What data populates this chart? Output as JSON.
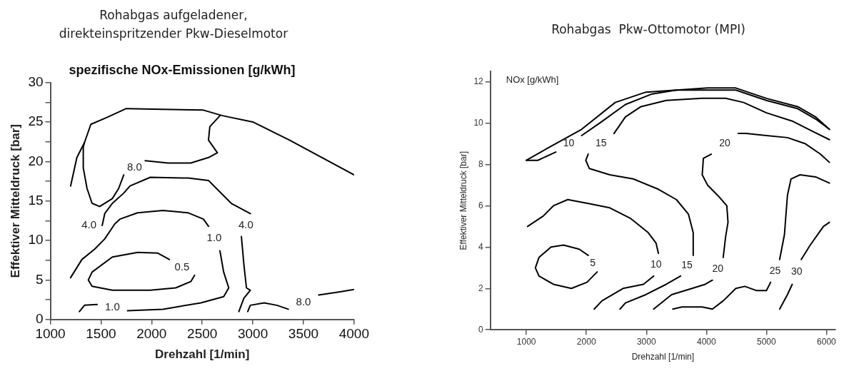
{
  "chart_data": [
    {
      "type": "line",
      "title": "Rohabgas aufgeladener, direkteinspritzender Pkw-Dieselmotor",
      "subtitle": "spezifische NOx-Emissionen [g/kWh]",
      "xlabel": "Drehzahl [1/min]",
      "ylabel": "Effektiver Mitteldruck [bar]",
      "xlim": [
        1000,
        4000
      ],
      "ylim": [
        0,
        30
      ],
      "xticks": [
        1000,
        1500,
        2000,
        2500,
        3000,
        3500,
        4000
      ],
      "yticks": [
        0,
        {
          "value": 2.5,
          "label": null
        },
        5,
        {
          "value": 7.5,
          "label": null
        },
        10,
        {
          "value": 12.5,
          "label": null
        },
        15,
        {
          "value": 17.5,
          "label": null
        },
        20,
        {
          "value": 22.5,
          "label": null
        },
        25,
        {
          "value": 27.5,
          "label": null
        },
        30
      ],
      "series": [
        {
          "type": "line",
          "color": "#000000",
          "x": [
            1200,
            1262,
            1337,
            1400,
            1562,
            1750,
            2112,
            2512,
            2700,
            3000,
            3362,
            4000
          ],
          "values": [
            16.9,
            20.5,
            22.4,
            24.7,
            25.6,
            26.7,
            26.6,
            26.5,
            25.8,
            25.0,
            22.7,
            18.3
          ]
        },
        {
          "type": "line",
          "name": "8.0",
          "color": "#000000",
          "x": [
            2675,
            2575,
            2562,
            2650,
            2562,
            2387,
            2162,
            1937,
            null,
            1725,
            1675,
            1612,
            1487,
            1412,
            1362,
            1325,
            1325,
            1337
          ],
          "values": [
            25.8,
            24.4,
            22.7,
            21.1,
            20.5,
            19.8,
            19.8,
            20.1,
            null,
            18.3,
            16.6,
            15.3,
            14.3,
            14.7,
            16.6,
            19.2,
            21.8,
            22.4
          ]
        },
        {
          "type": "line",
          "name": "4.0",
          "color": "#000000",
          "x": [
            null,
            1512,
            1537,
            1612,
            1725,
            1787,
            1987,
            2362,
            2562,
            2662,
            2787,
            2975,
            null,
            2887,
            2912,
            2937,
            2975,
            2912,
            2862
          ],
          "values": [
            null,
            11.9,
            13.4,
            14.7,
            16.0,
            16.9,
            18.0,
            17.9,
            17.6,
            16.3,
            14.7,
            13.4,
            null,
            10.5,
            6.9,
            4.0,
            3.7,
            2.7,
            1.0
          ]
        },
        {
          "type": "line",
          "name": "1.0",
          "color": "#000000",
          "x": [
            1200,
            1312,
            1437,
            1537,
            1637,
            1687,
            1862,
            2112,
            2362,
            2512,
            2562,
            null,
            2675,
            2712,
            2762,
            2712,
            2487,
            2112,
            1762,
            null,
            1462,
            1337,
            1287
          ],
          "values": [
            5.3,
            7.6,
            8.9,
            10.2,
            12.1,
            12.7,
            13.5,
            13.8,
            13.5,
            12.7,
            11.8,
            null,
            8.7,
            6.0,
            4.0,
            2.9,
            2.1,
            1.3,
            1.1,
            null,
            1.9,
            1.8,
            1.0
          ]
        },
        {
          "type": "line",
          "name": "0.5",
          "color": "#000000",
          "x": [
            1412,
            1612,
            1987,
            2237,
            2387,
            2425,
            null,
            2175,
            2062,
            1862,
            1612,
            1412,
            1375,
            1412
          ],
          "values": [
            4.2,
            3.7,
            3.7,
            4.0,
            4.8,
            5.6,
            null,
            7.6,
            8.4,
            8.5,
            7.9,
            6.0,
            5.0,
            4.2
          ]
        },
        {
          "type": "line",
          "name": "8.0",
          "color": "#000000",
          "x": [
            2950,
            2975,
            3112,
            3237,
            3350,
            null,
            3650,
            3862,
            4000
          ],
          "values": [
            1.0,
            1.8,
            2.1,
            1.8,
            1.3,
            null,
            3.1,
            3.5,
            3.8
          ]
        }
      ]
    },
    {
      "type": "line",
      "title": "Rohabgas  Pkw-Ottomotor (MPI)",
      "xlabel": "Drehzahl [1/min]",
      "ylabel": "Effektiver Mitteldruck [bar]",
      "xlim": [
        400,
        6150
      ],
      "ylim": [
        0,
        12.5
      ],
      "xticks": [
        1000,
        2000,
        3000,
        4000,
        5000,
        6000
      ],
      "yticks": [
        0,
        2,
        4,
        6,
        8,
        10,
        12
      ],
      "series": [
        {
          "type": "line",
          "color": "#000000",
          "x": [
            1000,
            1360,
            1920,
            2480,
            2990,
            3500,
            4020,
            4490,
            5000,
            5520,
            5820,
            6050
          ],
          "values": [
            8.2,
            8.8,
            9.7,
            11.0,
            11.5,
            11.6,
            11.7,
            11.7,
            11.2,
            10.8,
            10.3,
            9.7
          ]
        },
        {
          "type": "line",
          "name": "10",
          "color": "#000000",
          "x": [
            1000,
            1190,
            1490,
            null,
            1920,
            2220,
            2650,
            3080,
            3500,
            4020,
            4490,
            5000,
            5520,
            5820,
            6050
          ],
          "values": [
            8.2,
            8.2,
            8.6,
            null,
            9.4,
            10.0,
            10.9,
            11.4,
            11.6,
            11.6,
            11.6,
            11.1,
            10.7,
            10.2,
            9.7
          ]
        },
        {
          "type": "line",
          "name": "15",
          "color": "#000000",
          "x": [
            6050,
            5770,
            5430,
            5000,
            4620,
            4320,
            3930,
            3330,
            2910,
            2650,
            2460,
            null,
            2030,
            1990,
            2050,
            2390,
            2780,
            3200,
            3500,
            3700,
            3780,
            3780,
            null,
            3570,
            3330,
            2990,
            2650,
            2560
          ],
          "values": [
            9.2,
            9.6,
            10.1,
            10.5,
            11.0,
            11.2,
            11.2,
            11.1,
            10.8,
            10.3,
            9.5,
            null,
            8.5,
            8.2,
            7.8,
            7.5,
            7.3,
            6.8,
            6.3,
            5.6,
            4.7,
            3.6,
            null,
            2.6,
            2.2,
            1.7,
            1.3,
            1.0
          ]
        },
        {
          "type": "line",
          "name": "20",
          "color": "#000000",
          "x": [
            6050,
            5900,
            5650,
            5350,
            5000,
            4660,
            4530,
            null,
            4080,
            3950,
            3930,
            4020,
            4190,
            4340,
            4360,
            4320,
            4280,
            null,
            4100,
            3980,
            3760,
            3420,
            3120
          ],
          "values": [
            8.1,
            8.5,
            9.0,
            9.3,
            9.4,
            9.5,
            9.5,
            null,
            8.5,
            8.3,
            7.5,
            7.0,
            6.5,
            6.0,
            5.2,
            4.5,
            3.5,
            null,
            2.4,
            2.2,
            2.0,
            1.7,
            1.0
          ]
        },
        {
          "type": "line",
          "name": "10",
          "color": "#000000",
          "x": [
            1020,
            1280,
            1450,
            1690,
            2050,
            2390,
            2730,
            3030,
            3160,
            3200,
            null,
            3120,
            2950,
            2610,
            2260,
            2130
          ],
          "values": [
            5.0,
            5.5,
            6.0,
            6.3,
            6.1,
            5.9,
            5.4,
            4.7,
            4.2,
            3.7,
            null,
            2.6,
            2.2,
            2.0,
            1.4,
            1.0
          ]
        },
        {
          "type": "line",
          "name": "5",
          "color": "#000000",
          "x": [
            1210,
            1450,
            1750,
            2010,
            2180,
            null,
            2030,
            1880,
            1620,
            1410,
            1210,
            1150,
            1210
          ],
          "values": [
            2.6,
            2.2,
            2.0,
            2.3,
            2.8,
            null,
            3.6,
            3.9,
            4.1,
            4.0,
            3.5,
            3.0,
            2.6
          ]
        },
        {
          "type": "line",
          "name": "25",
          "color": "#000000",
          "x": [
            3440,
            3590,
            3930,
            4100,
            4280,
            4490,
            4640,
            4830,
            5000,
            5070,
            null,
            5220,
            5300,
            5350,
            5410,
            5560,
            5820,
            6050
          ],
          "values": [
            1.0,
            1.1,
            1.1,
            1.0,
            1.4,
            2.0,
            2.1,
            1.9,
            1.9,
            2.3,
            null,
            3.4,
            4.6,
            6.5,
            7.3,
            7.5,
            7.4,
            7.1
          ]
        },
        {
          "type": "line",
          "name": "30",
          "color": "#000000",
          "x": [
            5220,
            5350,
            5430,
            null,
            5580,
            5730,
            5950,
            6050
          ],
          "values": [
            1.0,
            1.7,
            2.2,
            null,
            3.4,
            4.1,
            5.0,
            5.2
          ]
        }
      ],
      "annotations": [
        "NOx [g/kWh]"
      ]
    }
  ]
}
